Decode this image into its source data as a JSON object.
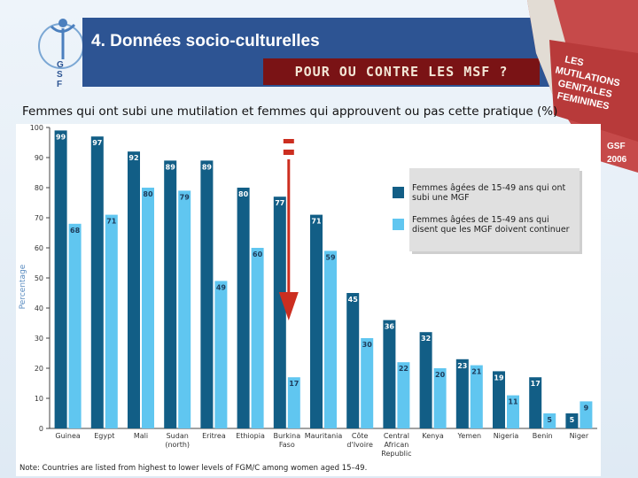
{
  "header": {
    "title": "4. Données socio-culturelles",
    "subtitle": "POUR OU CONTRE LES MSF  ?",
    "logo_text": "GSF",
    "book_lines": [
      "LES",
      "MUTILATIONS",
      "GENITALES",
      "FEMININES"
    ],
    "book_footer": [
      "GSF",
      "2006"
    ]
  },
  "colors": {
    "series1": "#125e86",
    "series2": "#60c6f0",
    "arrow": "#cc2e20",
    "header_bg": "#2d5493",
    "subtitle_bg": "#7a1315"
  },
  "chart_data": {
    "type": "bar",
    "title": "Femmes qui ont subi une mutilation et femmes qui approuvent ou pas cette pratique (%)",
    "ylabel": "Percentage",
    "ylim": [
      0,
      100
    ],
    "yticks": [
      0,
      10,
      20,
      30,
      40,
      50,
      60,
      70,
      80,
      90,
      100
    ],
    "categories": [
      [
        "Guinea"
      ],
      [
        "Egypt"
      ],
      [
        "Mali"
      ],
      [
        "Sudan",
        "(north)"
      ],
      [
        "Eritrea"
      ],
      [
        "Ethiopia"
      ],
      [
        "Burkina",
        "Faso"
      ],
      [
        "Mauritania"
      ],
      [
        "Côte",
        "d'Ivoire"
      ],
      [
        "Central",
        "African",
        "Republic"
      ],
      [
        "Kenya"
      ],
      [
        "Yemen"
      ],
      [
        "Nigeria"
      ],
      [
        "Benin"
      ],
      [
        "Niger"
      ]
    ],
    "series": [
      {
        "name": "Femmes âgées de 15-49 ans qui ont subi une MGF",
        "values": [
          99,
          97,
          92,
          89,
          89,
          80,
          77,
          71,
          45,
          36,
          32,
          23,
          19,
          17,
          5
        ]
      },
      {
        "name": "Femmes âgées de 15-49 ans qui disent que les MGF doivent continuer",
        "values": [
          68,
          71,
          80,
          79,
          49,
          60,
          17,
          59,
          30,
          22,
          20,
          21,
          11,
          5,
          9
        ]
      }
    ],
    "legend_position": "top-right",
    "note": "Note: Countries are listed from highest to lower levels of FGM/C among women aged 15–49."
  }
}
